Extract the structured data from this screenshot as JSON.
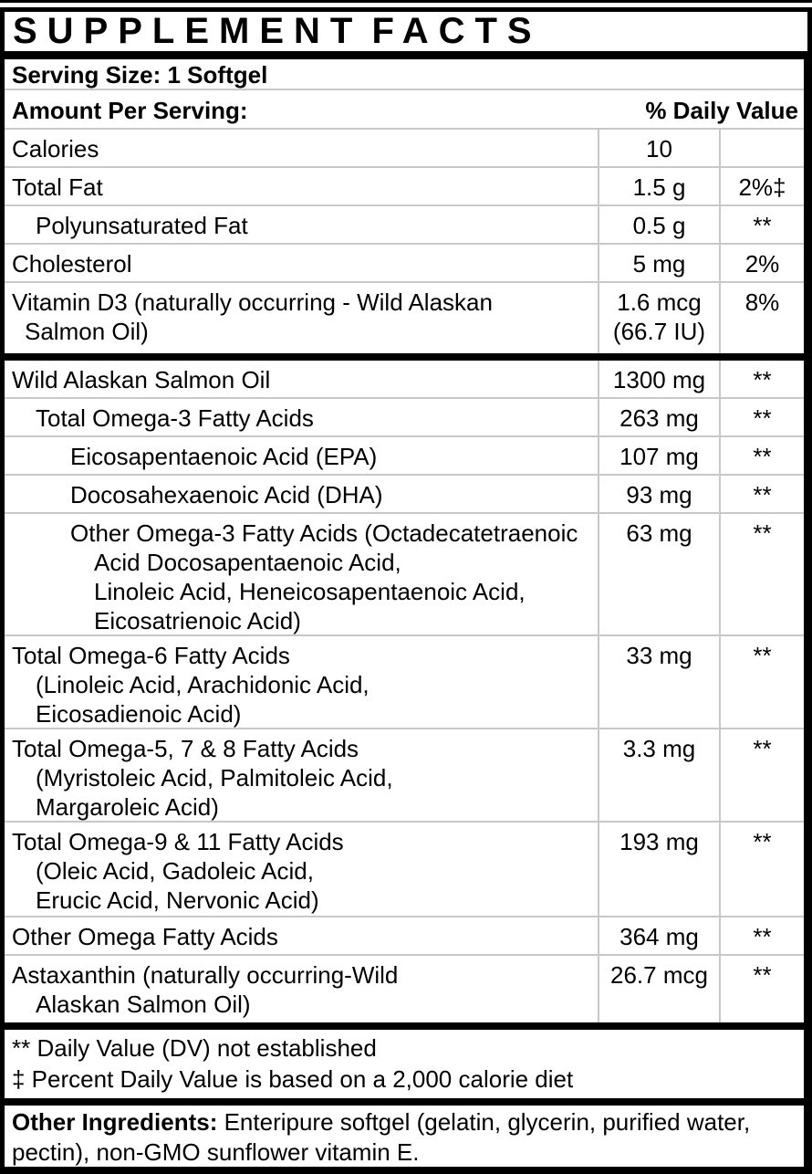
{
  "title": "SUPPLEMENT FACTS",
  "serving": {
    "text": "Serving Size: 1 Softgel"
  },
  "header": {
    "amount_label": "Amount Per Serving:",
    "dv_label": "% Daily Value"
  },
  "rows": [
    {
      "label": [
        "Calories"
      ],
      "amount": "10",
      "dv": ""
    },
    {
      "label": [
        "Total Fat"
      ],
      "amount": "1.5 g",
      "dv": "2%‡"
    },
    {
      "label": [
        "Polyunsaturated Fat"
      ],
      "amount": "0.5 g",
      "dv": "**"
    },
    {
      "label": [
        "Cholesterol"
      ],
      "amount": "5 mg",
      "dv": "2%"
    },
    {
      "label": [
        "Vitamin D3 (naturally occurring - Wild Alaskan",
        "Salmon Oil)"
      ],
      "amount": [
        "1.6 mcg",
        "(66.7 IU)"
      ],
      "dv": "8%"
    },
    {
      "label": [
        "Wild Alaskan Salmon Oil"
      ],
      "amount": "1300 mg",
      "dv": "**"
    },
    {
      "label": [
        "Total Omega-3 Fatty Acids"
      ],
      "amount": "263 mg",
      "dv": "**"
    },
    {
      "label": [
        "Eicosapentaenoic Acid (EPA)"
      ],
      "amount": "107 mg",
      "dv": "**"
    },
    {
      "label": [
        "Docosahexaenoic Acid (DHA)"
      ],
      "amount": "93 mg",
      "dv": "**"
    },
    {
      "label": [
        "Other Omega-3 Fatty Acids (Octadecatetraenoic",
        "Acid Docosapentaenoic Acid,",
        "Linoleic Acid, Heneicosapentaenoic Acid,",
        "Eicosatrienoic Acid)"
      ],
      "amount": "63 mg",
      "dv": "**"
    },
    {
      "label": [
        "Total Omega-6 Fatty Acids",
        "(Linoleic Acid, Arachidonic Acid,",
        "Eicosadienoic Acid)"
      ],
      "amount": "33 mg",
      "dv": "**"
    },
    {
      "label": [
        "Total Omega-5, 7 & 8 Fatty Acids",
        "(Myristoleic Acid, Palmitoleic Acid,",
        "Margaroleic Acid)"
      ],
      "amount": "3.3 mg",
      "dv": "**"
    },
    {
      "label": [
        "Total Omega-9 & 11 Fatty Acids",
        "(Oleic Acid, Gadoleic Acid,",
        "Erucic Acid, Nervonic Acid)"
      ],
      "amount": "193 mg",
      "dv": "**"
    },
    {
      "label": [
        "Other Omega Fatty Acids"
      ],
      "amount": "364 mg",
      "dv": "**"
    },
    {
      "label": [
        "Astaxanthin (naturally occurring-Wild",
        "Alaskan Salmon Oil)"
      ],
      "amount": "26.7 mcg",
      "dv": "**"
    }
  ],
  "footnotes": [
    "** Daily Value (DV) not established",
    "‡ Percent Daily Value is based on a 2,000 calorie diet"
  ],
  "other_ingredients": {
    "label": "Other Ingredients:",
    "text": " Enteripure softgel (gelatin, glycerin, purified water, pectin), non-GMO sunflower vitamin E."
  },
  "colors": {
    "text": "#000000",
    "separator": "#c8c8c8",
    "background": "#ffffff"
  }
}
